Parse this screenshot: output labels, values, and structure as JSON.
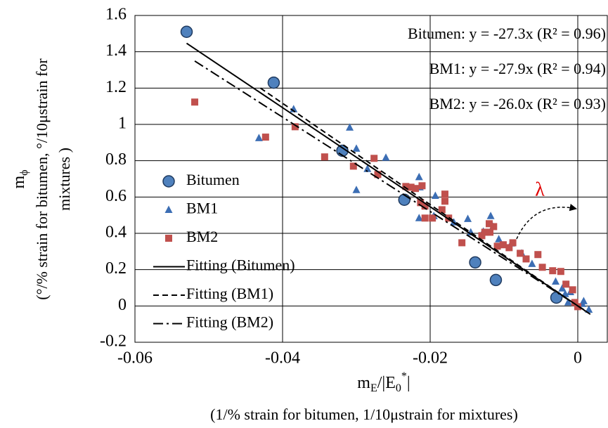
{
  "chart_data": {
    "type": "scatter",
    "equations": [
      "Bitumen: y = -27.3x (R² = 0.96)",
      "BM1: y = -27.9x (R² = 0.94)",
      "BM2: y = -26.0x (R² = 0.93)"
    ],
    "annotation": "λ",
    "y_label": {
      "main": "m",
      "sub": "ϕ",
      "lines": [
        "(°/% strain for bitumen, °/10μstrain for",
        "mixtures )"
      ]
    },
    "x_label": {
      "parts": [
        "m",
        "E",
        "/|E",
        "0",
        "*",
        "|"
      ],
      "note": "(1/% strain for bitumen, 1/10μstrain for mixtures)"
    },
    "xlim": [
      -0.06,
      0.004
    ],
    "ylim": [
      -0.2,
      1.6
    ],
    "xticks": [
      -0.06,
      -0.04,
      -0.02,
      0
    ],
    "yticks": [
      -0.2,
      0,
      0.2,
      0.4,
      0.6,
      0.8,
      1,
      1.2,
      1.4,
      1.6
    ],
    "grid": true,
    "legend": "left",
    "series": [
      {
        "name": "Bitumen",
        "marker": "circle",
        "color": "#4f81bd",
        "x": [
          -0.053,
          -0.0412,
          -0.0319,
          -0.0235,
          -0.0139,
          -0.0111,
          -0.0029
        ],
        "values": [
          1.51,
          1.23,
          0.855,
          0.585,
          0.24,
          0.143,
          0.046
        ]
      },
      {
        "name": "BM1",
        "marker": "triangle",
        "color": "#3c6eb4",
        "x": [
          -0.0432,
          -0.0385,
          -0.0309,
          -0.03,
          -0.03,
          -0.0285,
          -0.026,
          -0.0215,
          -0.0214,
          -0.0215,
          -0.0193,
          -0.0195,
          -0.0168,
          -0.0149,
          -0.0145,
          -0.0128,
          -0.0118,
          -0.0115,
          -0.0107,
          -0.009,
          -0.0076,
          -0.0062,
          -0.003,
          -0.0021,
          -0.001,
          0.0008,
          0.0015,
          -0.0017,
          -0.0013,
          0.0006
        ],
        "values": [
          0.925,
          1.084,
          0.983,
          0.867,
          0.639,
          0.755,
          0.817,
          0.71,
          0.654,
          0.484,
          0.607,
          0.496,
          0.461,
          0.48,
          0.406,
          0.41,
          0.496,
          0.437,
          0.368,
          0.345,
          0.29,
          0.232,
          0.135,
          0.097,
          0.077,
          0.027,
          -0.02,
          0.066,
          0.02,
          0.012
        ]
      },
      {
        "name": "BM2",
        "marker": "square",
        "color": "#c0504d",
        "x": [
          -0.0519,
          -0.0423,
          -0.0383,
          -0.0343,
          -0.0304,
          -0.0276,
          -0.0271,
          -0.0233,
          -0.0226,
          -0.022,
          -0.0213,
          -0.0211,
          -0.0207,
          -0.0197,
          -0.0207,
          -0.0184,
          -0.018,
          -0.018,
          -0.0175,
          -0.0157,
          -0.013,
          -0.0126,
          -0.012,
          -0.0119,
          -0.0114,
          -0.0109,
          -0.0101,
          -0.0093,
          -0.0088,
          -0.0078,
          -0.007,
          -0.0054,
          -0.0048,
          -0.0034,
          -0.0023,
          -0.0016,
          -0.0007,
          -0.0004,
          0
        ],
        "values": [
          1.123,
          0.93,
          0.987,
          0.821,
          0.77,
          0.813,
          0.724,
          0.658,
          0.654,
          0.647,
          0.569,
          0.662,
          0.55,
          0.484,
          0.484,
          0.53,
          0.616,
          0.577,
          0.484,
          0.348,
          0.387,
          0.406,
          0.453,
          0.406,
          0.437,
          0.329,
          0.337,
          0.321,
          0.348,
          0.29,
          0.259,
          0.283,
          0.213,
          0.194,
          0.19,
          0.12,
          0.089,
          0.019,
          -0.004
        ]
      },
      {
        "name": "Fitting (Bitumen)",
        "marker": "line",
        "dash": "none",
        "color": "#000000",
        "x": [
          -0.053,
          0.0017
        ],
        "values": [
          1.447,
          -0.046
        ]
      },
      {
        "name": "Fitting (BM1)",
        "marker": "line",
        "dash": "8 5",
        "color": "#000000",
        "x": [
          -0.043,
          0.001
        ],
        "values": [
          1.2,
          -0.028
        ]
      },
      {
        "name": "Fitting (BM2)",
        "marker": "line",
        "dash": "14 5 3 5",
        "color": "#000000",
        "x": [
          -0.0519,
          0.0008
        ],
        "values": [
          1.349,
          -0.02
        ]
      }
    ]
  }
}
